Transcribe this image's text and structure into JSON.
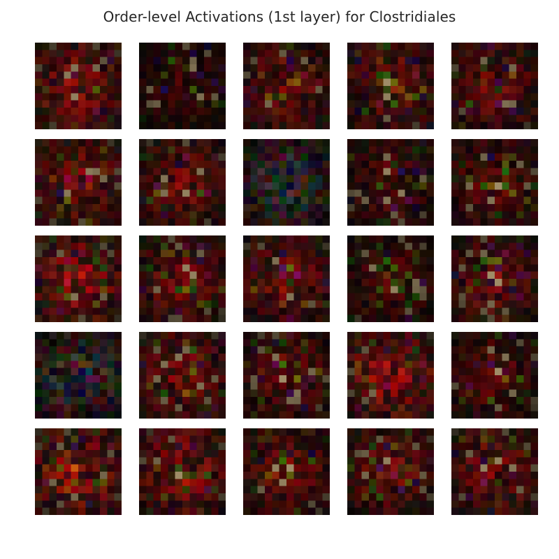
{
  "chart_data": {
    "type": "heatmap",
    "title": "Order-level Activations (1st layer) for Clostridiales",
    "rows": 5,
    "cols": 5,
    "cell_resolution": 12,
    "colormap": "RGB channel activations (red-dominant on black)",
    "axes": "off",
    "grid": false,
    "legend": "none",
    "panels": [
      {
        "index": 0,
        "dominant": "red",
        "mean_intensity": 0.28
      },
      {
        "index": 1,
        "dominant": "red",
        "mean_intensity": 0.14
      },
      {
        "index": 2,
        "dominant": "red",
        "mean_intensity": 0.24
      },
      {
        "index": 3,
        "dominant": "red",
        "mean_intensity": 0.26
      },
      {
        "index": 4,
        "dominant": "red",
        "mean_intensity": 0.24
      },
      {
        "index": 5,
        "dominant": "red",
        "mean_intensity": 0.26
      },
      {
        "index": 6,
        "dominant": "red",
        "mean_intensity": 0.24
      },
      {
        "index": 7,
        "dominant": "mixed",
        "mean_intensity": 0.26
      },
      {
        "index": 8,
        "dominant": "red",
        "mean_intensity": 0.2
      },
      {
        "index": 9,
        "dominant": "red",
        "mean_intensity": 0.22
      },
      {
        "index": 10,
        "dominant": "red",
        "mean_intensity": 0.32
      },
      {
        "index": 11,
        "dominant": "red",
        "mean_intensity": 0.24
      },
      {
        "index": 12,
        "dominant": "red",
        "mean_intensity": 0.26
      },
      {
        "index": 13,
        "dominant": "red",
        "mean_intensity": 0.18
      },
      {
        "index": 14,
        "dominant": "red",
        "mean_intensity": 0.24
      },
      {
        "index": 15,
        "dominant": "mixed",
        "mean_intensity": 0.26
      },
      {
        "index": 16,
        "dominant": "red",
        "mean_intensity": 0.26
      },
      {
        "index": 17,
        "dominant": "red",
        "mean_intensity": 0.22
      },
      {
        "index": 18,
        "dominant": "red",
        "mean_intensity": 0.32
      },
      {
        "index": 19,
        "dominant": "red",
        "mean_intensity": 0.2
      },
      {
        "index": 20,
        "dominant": "red",
        "mean_intensity": 0.32
      },
      {
        "index": 21,
        "dominant": "red",
        "mean_intensity": 0.3
      },
      {
        "index": 22,
        "dominant": "red",
        "mean_intensity": 0.24
      },
      {
        "index": 23,
        "dominant": "red",
        "mean_intensity": 0.24
      },
      {
        "index": 24,
        "dominant": "red",
        "mean_intensity": 0.26
      }
    ]
  }
}
